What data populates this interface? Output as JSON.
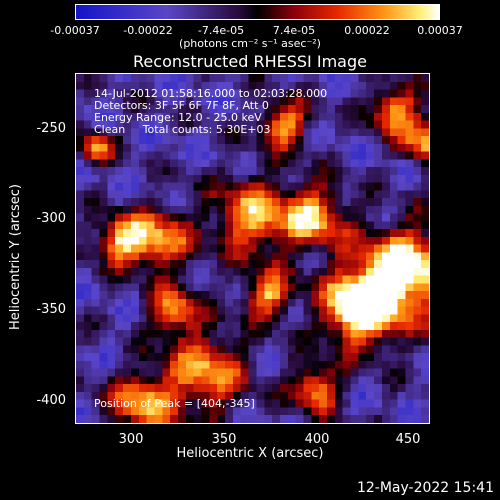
{
  "colorbar": {
    "tick_labels": [
      "-0.00037",
      "-0.00022",
      "-7.4e-05",
      "7.4e-05",
      "0.00022",
      "0.00037"
    ],
    "units": "(photons cm⁻² s⁻¹ asec⁻²)"
  },
  "title": "Reconstructed RHESSI Image",
  "overlay": {
    "line1": "14-Jul-2012 01:58:16.000 to 02:03:28.000",
    "line2": "Detectors: 3F 5F 6F 7F 8F, Att 0",
    "line3": "Energy Range: 12.0 - 25.0 keV",
    "line4": "Clean     Total counts: 5.30E+03",
    "peak": "Position of Peak = [404,-345]"
  },
  "axes": {
    "xlabel": "Heliocentric X (arcsec)",
    "ylabel": "Heliocentric Y (arcsec)",
    "xticks": [
      "300",
      "350",
      "400",
      "450"
    ],
    "yticks": [
      "-250",
      "-300",
      "-350",
      "-400"
    ]
  },
  "footer_timestamp": "12-May-2022 15:41",
  "chart_data": {
    "type": "heatmap",
    "title": "Reconstructed RHESSI Image",
    "xlabel": "Heliocentric X (arcsec)",
    "ylabel": "Heliocentric Y (arcsec)",
    "xlim": [
      265,
      460
    ],
    "ylim": [
      -415,
      -222
    ],
    "colorscale_range": [
      -0.00037,
      0.00037
    ],
    "peak_position": [
      404,
      -345
    ]
  }
}
